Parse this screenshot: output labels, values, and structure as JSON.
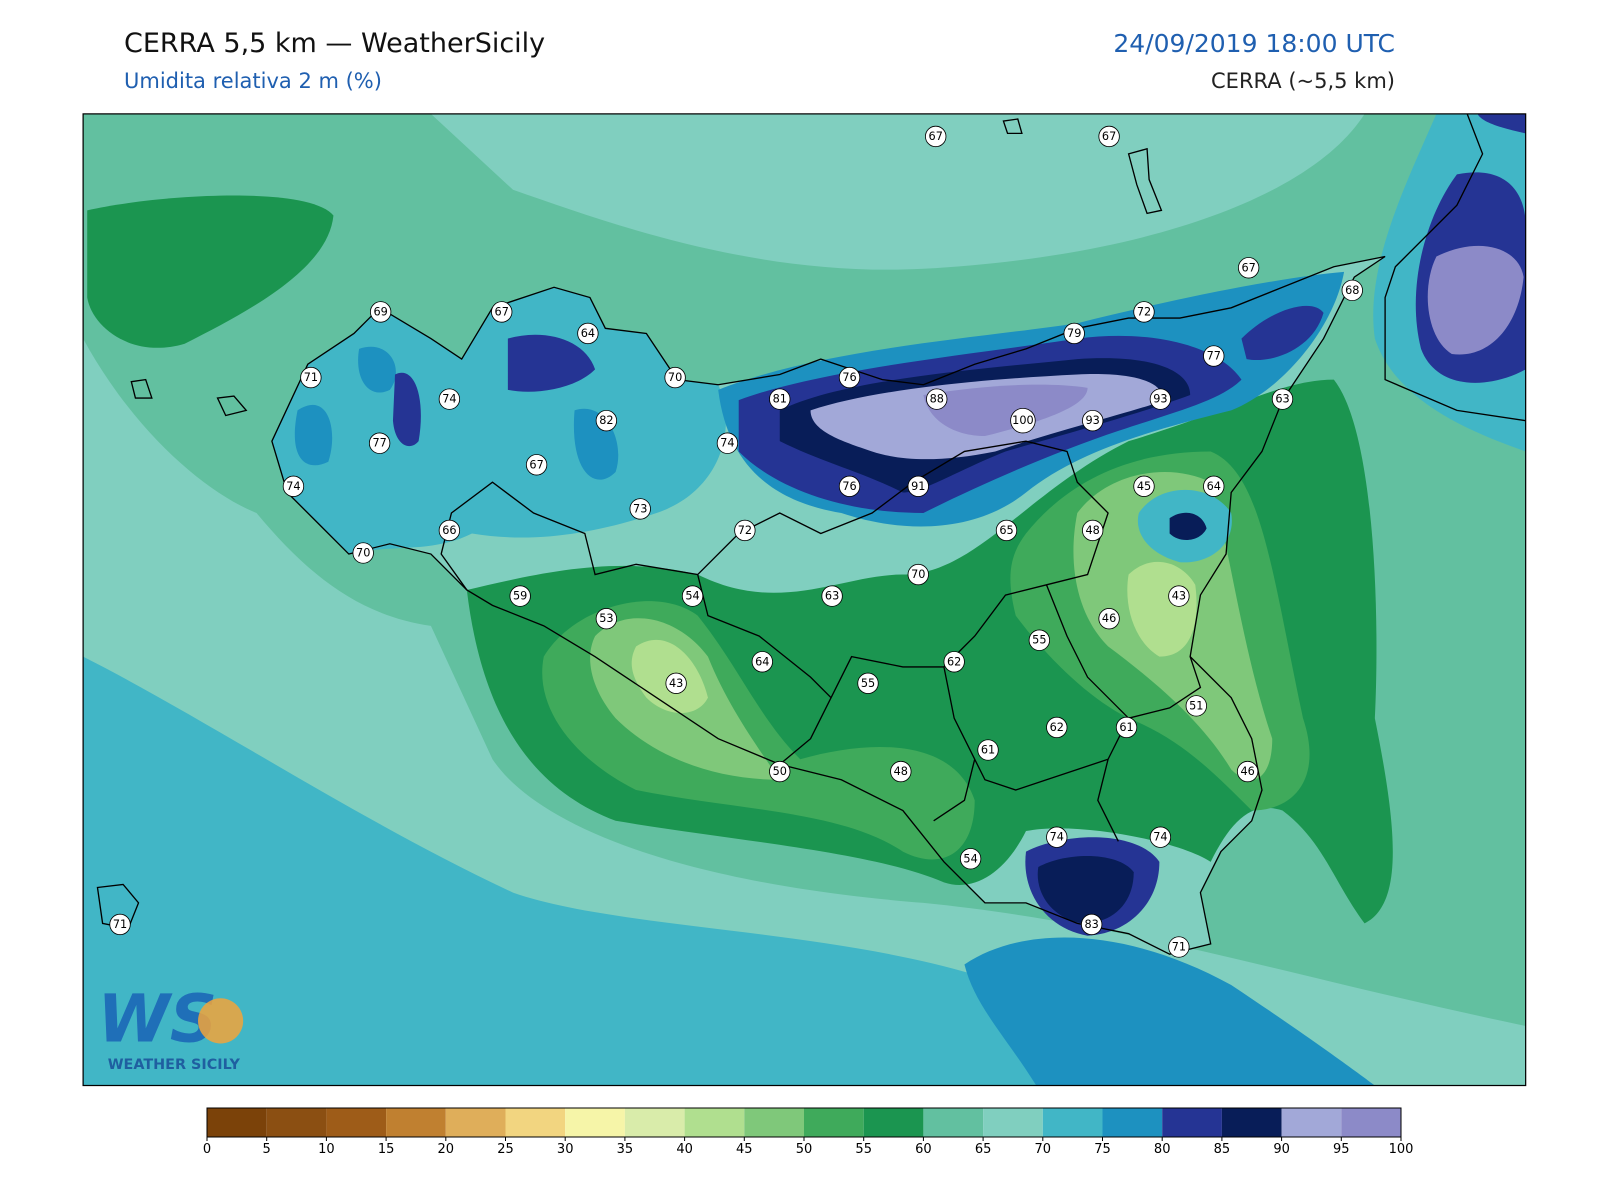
{
  "header": {
    "title": "CERRA 5,5 km — WeatherSicily",
    "subtitle": "Umidita relativa 2 m (%)",
    "valid_time": "24/09/2019 18:00 UTC",
    "model": "CERRA (~5,5 km)"
  },
  "stations": [
    67,
    67,
    69,
    67,
    64,
    71,
    74,
    77,
    74,
    70,
    66,
    67,
    82,
    70,
    74,
    73,
    72,
    81,
    76,
    88,
    100,
    93,
    93,
    79,
    72,
    67,
    68,
    77,
    63,
    64,
    45,
    48,
    65,
    91,
    76,
    70,
    63,
    54,
    59,
    53,
    43,
    64,
    55,
    62,
    55,
    46,
    43,
    51,
    61,
    62,
    61,
    48,
    50,
    46,
    54,
    74,
    74,
    83,
    71,
    71
  ],
  "colorbar": {
    "ticks": [
      0,
      5,
      10,
      15,
      20,
      25,
      30,
      35,
      40,
      45,
      50,
      55,
      60,
      65,
      70,
      75,
      80,
      85,
      90,
      95,
      100
    ],
    "colors": [
      "#7b4209",
      "#8b4f12",
      "#9e5c18",
      "#c08030",
      "#dfae5a",
      "#f2d580",
      "#f6f5a8",
      "#d9ecaa",
      "#b0df8f",
      "#7fc87a",
      "#3faa5b",
      "#1b9550",
      "#62c0a0",
      "#80cfbf",
      "#41b6c6",
      "#1d91c0",
      "#253494",
      "#081d58",
      "#a2a8d8",
      "#8c8ac8"
    ]
  },
  "logo": {
    "mark": "WS",
    "name": "WEATHER SICILY"
  }
}
